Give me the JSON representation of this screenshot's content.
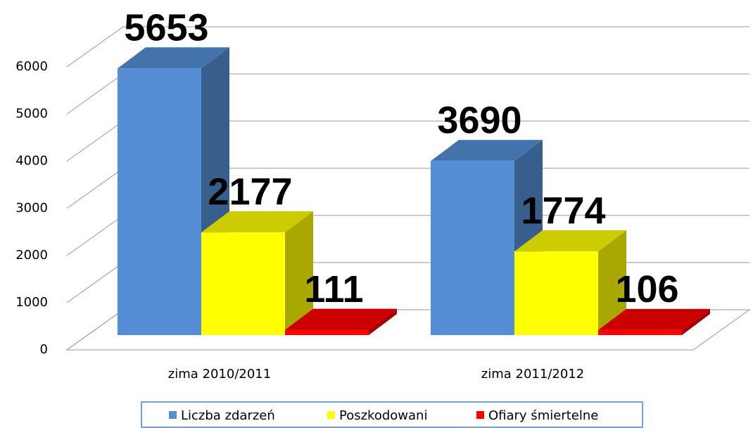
{
  "chart_data": {
    "type": "bar3d",
    "categories": [
      "zima 2010/2011",
      "zima 2011/2012"
    ],
    "series": [
      {
        "name": "Liczba zdarzeń",
        "color": "#558ed5",
        "values": [
          5653,
          3690
        ]
      },
      {
        "name": "Poszkodowani",
        "color": "#ffff00",
        "values": [
          2177,
          1774
        ]
      },
      {
        "name": "Ofiary śmiertelne",
        "color": "#ff0000",
        "values": [
          111,
          106
        ]
      }
    ],
    "ylim": [
      0,
      6000
    ],
    "yticks": [
      0,
      1000,
      2000,
      3000,
      4000,
      5000,
      6000
    ],
    "grid": true,
    "legend": "bottom"
  }
}
